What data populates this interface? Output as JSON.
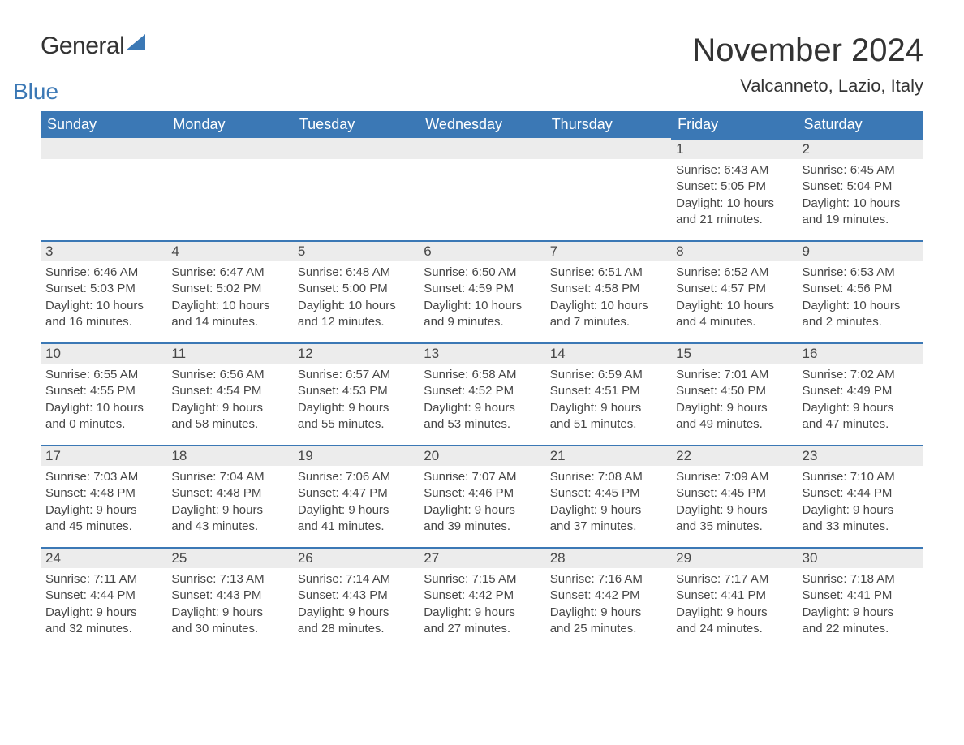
{
  "brand": {
    "text1": "General",
    "text2": "Blue",
    "text_color1": "#333333",
    "text_color2": "#3b78b5",
    "icon_color": "#3b78b5"
  },
  "header": {
    "month_title": "November 2024",
    "location": "Valcanneto, Lazio, Italy",
    "title_fontsize": 40,
    "location_fontsize": 22,
    "title_color": "#333333"
  },
  "calendar": {
    "type": "table",
    "header_bg": "#3b78b5",
    "header_text_color": "#ffffff",
    "day_header_bg": "#ececec",
    "day_header_border_top": "#3b78b5",
    "cell_text_color": "#474747",
    "body_font_size": 15,
    "columns": [
      "Sunday",
      "Monday",
      "Tuesday",
      "Wednesday",
      "Thursday",
      "Friday",
      "Saturday"
    ],
    "first_day_col": 5,
    "days": [
      {
        "n": "1",
        "sunrise": "Sunrise: 6:43 AM",
        "sunset": "Sunset: 5:05 PM",
        "dl1": "Daylight: 10 hours",
        "dl2": "and 21 minutes."
      },
      {
        "n": "2",
        "sunrise": "Sunrise: 6:45 AM",
        "sunset": "Sunset: 5:04 PM",
        "dl1": "Daylight: 10 hours",
        "dl2": "and 19 minutes."
      },
      {
        "n": "3",
        "sunrise": "Sunrise: 6:46 AM",
        "sunset": "Sunset: 5:03 PM",
        "dl1": "Daylight: 10 hours",
        "dl2": "and 16 minutes."
      },
      {
        "n": "4",
        "sunrise": "Sunrise: 6:47 AM",
        "sunset": "Sunset: 5:02 PM",
        "dl1": "Daylight: 10 hours",
        "dl2": "and 14 minutes."
      },
      {
        "n": "5",
        "sunrise": "Sunrise: 6:48 AM",
        "sunset": "Sunset: 5:00 PM",
        "dl1": "Daylight: 10 hours",
        "dl2": "and 12 minutes."
      },
      {
        "n": "6",
        "sunrise": "Sunrise: 6:50 AM",
        "sunset": "Sunset: 4:59 PM",
        "dl1": "Daylight: 10 hours",
        "dl2": "and 9 minutes."
      },
      {
        "n": "7",
        "sunrise": "Sunrise: 6:51 AM",
        "sunset": "Sunset: 4:58 PM",
        "dl1": "Daylight: 10 hours",
        "dl2": "and 7 minutes."
      },
      {
        "n": "8",
        "sunrise": "Sunrise: 6:52 AM",
        "sunset": "Sunset: 4:57 PM",
        "dl1": "Daylight: 10 hours",
        "dl2": "and 4 minutes."
      },
      {
        "n": "9",
        "sunrise": "Sunrise: 6:53 AM",
        "sunset": "Sunset: 4:56 PM",
        "dl1": "Daylight: 10 hours",
        "dl2": "and 2 minutes."
      },
      {
        "n": "10",
        "sunrise": "Sunrise: 6:55 AM",
        "sunset": "Sunset: 4:55 PM",
        "dl1": "Daylight: 10 hours",
        "dl2": "and 0 minutes."
      },
      {
        "n": "11",
        "sunrise": "Sunrise: 6:56 AM",
        "sunset": "Sunset: 4:54 PM",
        "dl1": "Daylight: 9 hours",
        "dl2": "and 58 minutes."
      },
      {
        "n": "12",
        "sunrise": "Sunrise: 6:57 AM",
        "sunset": "Sunset: 4:53 PM",
        "dl1": "Daylight: 9 hours",
        "dl2": "and 55 minutes."
      },
      {
        "n": "13",
        "sunrise": "Sunrise: 6:58 AM",
        "sunset": "Sunset: 4:52 PM",
        "dl1": "Daylight: 9 hours",
        "dl2": "and 53 minutes."
      },
      {
        "n": "14",
        "sunrise": "Sunrise: 6:59 AM",
        "sunset": "Sunset: 4:51 PM",
        "dl1": "Daylight: 9 hours",
        "dl2": "and 51 minutes."
      },
      {
        "n": "15",
        "sunrise": "Sunrise: 7:01 AM",
        "sunset": "Sunset: 4:50 PM",
        "dl1": "Daylight: 9 hours",
        "dl2": "and 49 minutes."
      },
      {
        "n": "16",
        "sunrise": "Sunrise: 7:02 AM",
        "sunset": "Sunset: 4:49 PM",
        "dl1": "Daylight: 9 hours",
        "dl2": "and 47 minutes."
      },
      {
        "n": "17",
        "sunrise": "Sunrise: 7:03 AM",
        "sunset": "Sunset: 4:48 PM",
        "dl1": "Daylight: 9 hours",
        "dl2": "and 45 minutes."
      },
      {
        "n": "18",
        "sunrise": "Sunrise: 7:04 AM",
        "sunset": "Sunset: 4:48 PM",
        "dl1": "Daylight: 9 hours",
        "dl2": "and 43 minutes."
      },
      {
        "n": "19",
        "sunrise": "Sunrise: 7:06 AM",
        "sunset": "Sunset: 4:47 PM",
        "dl1": "Daylight: 9 hours",
        "dl2": "and 41 minutes."
      },
      {
        "n": "20",
        "sunrise": "Sunrise: 7:07 AM",
        "sunset": "Sunset: 4:46 PM",
        "dl1": "Daylight: 9 hours",
        "dl2": "and 39 minutes."
      },
      {
        "n": "21",
        "sunrise": "Sunrise: 7:08 AM",
        "sunset": "Sunset: 4:45 PM",
        "dl1": "Daylight: 9 hours",
        "dl2": "and 37 minutes."
      },
      {
        "n": "22",
        "sunrise": "Sunrise: 7:09 AM",
        "sunset": "Sunset: 4:45 PM",
        "dl1": "Daylight: 9 hours",
        "dl2": "and 35 minutes."
      },
      {
        "n": "23",
        "sunrise": "Sunrise: 7:10 AM",
        "sunset": "Sunset: 4:44 PM",
        "dl1": "Daylight: 9 hours",
        "dl2": "and 33 minutes."
      },
      {
        "n": "24",
        "sunrise": "Sunrise: 7:11 AM",
        "sunset": "Sunset: 4:44 PM",
        "dl1": "Daylight: 9 hours",
        "dl2": "and 32 minutes."
      },
      {
        "n": "25",
        "sunrise": "Sunrise: 7:13 AM",
        "sunset": "Sunset: 4:43 PM",
        "dl1": "Daylight: 9 hours",
        "dl2": "and 30 minutes."
      },
      {
        "n": "26",
        "sunrise": "Sunrise: 7:14 AM",
        "sunset": "Sunset: 4:43 PM",
        "dl1": "Daylight: 9 hours",
        "dl2": "and 28 minutes."
      },
      {
        "n": "27",
        "sunrise": "Sunrise: 7:15 AM",
        "sunset": "Sunset: 4:42 PM",
        "dl1": "Daylight: 9 hours",
        "dl2": "and 27 minutes."
      },
      {
        "n": "28",
        "sunrise": "Sunrise: 7:16 AM",
        "sunset": "Sunset: 4:42 PM",
        "dl1": "Daylight: 9 hours",
        "dl2": "and 25 minutes."
      },
      {
        "n": "29",
        "sunrise": "Sunrise: 7:17 AM",
        "sunset": "Sunset: 4:41 PM",
        "dl1": "Daylight: 9 hours",
        "dl2": "and 24 minutes."
      },
      {
        "n": "30",
        "sunrise": "Sunrise: 7:18 AM",
        "sunset": "Sunset: 4:41 PM",
        "dl1": "Daylight: 9 hours",
        "dl2": "and 22 minutes."
      }
    ]
  }
}
